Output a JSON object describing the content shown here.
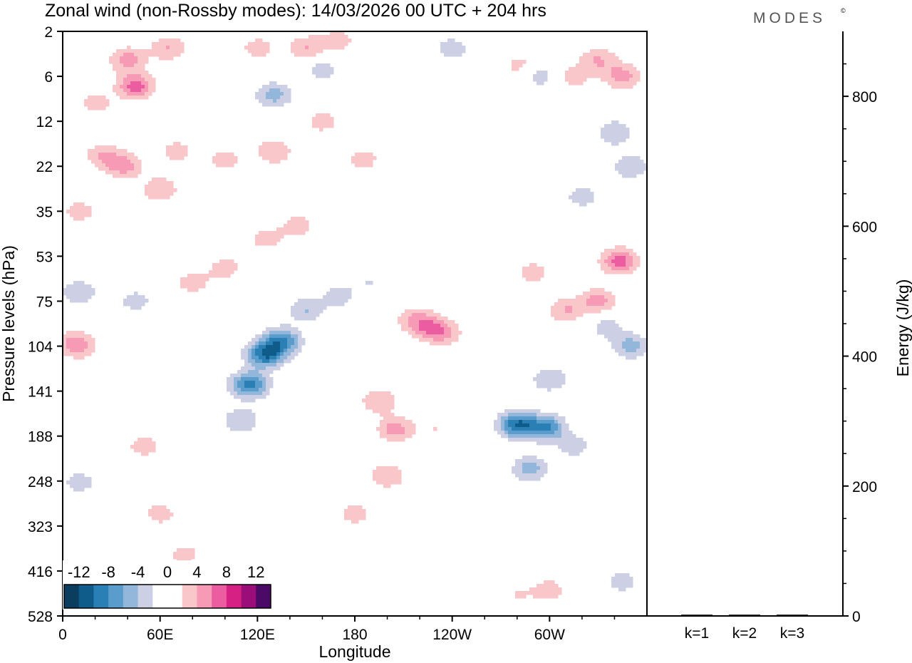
{
  "title": "Zonal wind (non-Rossby modes):  14/03/2026  00 UTC  + 204 hrs",
  "brand": "MODES",
  "brand_mark": "©",
  "chart_data": [
    {
      "type": "heatmap",
      "title": "Zonal wind (non-Rossby modes):  14/03/2026  00 UTC  + 204 hrs",
      "xlabel": "Longitude",
      "ylabel": "Pressure levels (hPa)",
      "x_ticks": [
        "0",
        "60E",
        "120E",
        "180",
        "120W",
        "60W"
      ],
      "x_tick_degrees": [
        0,
        60,
        120,
        180,
        240,
        300
      ],
      "xlim": [
        0,
        360
      ],
      "y_ticks": [
        "2",
        "6",
        "12",
        "22",
        "35",
        "53",
        "75",
        "104",
        "141",
        "188",
        "248",
        "323",
        "416",
        "528"
      ],
      "y_direction": "downward (pressure increases downward)",
      "colorbar": {
        "tick_labels": [
          "-12",
          "-8",
          "-4",
          "0",
          "4",
          "8",
          "12"
        ],
        "levels": [
          -14,
          -12,
          -10,
          -8,
          -6,
          -4,
          -2,
          0,
          2,
          4,
          6,
          8,
          10,
          12,
          14
        ],
        "colors": [
          "#0b3d5e",
          "#0f5b8a",
          "#2a7fb5",
          "#5a9ccc",
          "#93b7da",
          "#cdd0e5",
          "#ffffff",
          "#ffffff",
          "#f9c6c9",
          "#f69ab5",
          "#ec5ca0",
          "#d62083",
          "#9b0d79",
          "#4b0a66"
        ],
        "placement": "bottom-left"
      },
      "blobs": [
        {
          "lon": 45,
          "p": 7,
          "val": 7
        },
        {
          "lon": 40,
          "p": 4,
          "val": 5
        },
        {
          "lon": 20,
          "p": 9,
          "val": 3
        },
        {
          "lon": 65,
          "p": 3,
          "val": 4
        },
        {
          "lon": 120,
          "p": 3,
          "val": 3
        },
        {
          "lon": 150,
          "p": 3,
          "val": 4
        },
        {
          "lon": 170,
          "p": 2.5,
          "val": 3
        },
        {
          "lon": 25,
          "p": 19,
          "val": 4
        },
        {
          "lon": 38,
          "p": 22,
          "val": 5
        },
        {
          "lon": 60,
          "p": 28,
          "val": 4
        },
        {
          "lon": 10,
          "p": 35,
          "val": 3
        },
        {
          "lon": 70,
          "p": 18,
          "val": 3
        },
        {
          "lon": 100,
          "p": 20,
          "val": 3
        },
        {
          "lon": 130,
          "p": 18,
          "val": 4
        },
        {
          "lon": 160,
          "p": 12,
          "val": 3
        },
        {
          "lon": 185,
          "p": 20,
          "val": 3
        },
        {
          "lon": 130,
          "p": 8,
          "val": -5
        },
        {
          "lon": 160,
          "p": 5,
          "val": -3
        },
        {
          "lon": 195,
          "p": 4,
          "val": -2
        },
        {
          "lon": 240,
          "p": 3,
          "val": -3
        },
        {
          "lon": 265,
          "p": 4,
          "val": -2
        },
        {
          "lon": 280,
          "p": 4.5,
          "val": 3
        },
        {
          "lon": 295,
          "p": 6,
          "val": -3
        },
        {
          "lon": 315,
          "p": 6,
          "val": 3
        },
        {
          "lon": 330,
          "p": 4,
          "val": 4
        },
        {
          "lon": 345,
          "p": 6,
          "val": 5
        },
        {
          "lon": 340,
          "p": 14,
          "val": -4
        },
        {
          "lon": 350,
          "p": 22,
          "val": -4
        },
        {
          "lon": 320,
          "p": 30,
          "val": -3
        },
        {
          "lon": 10,
          "p": 70,
          "val": -4
        },
        {
          "lon": 5,
          "p": 100,
          "val": 2
        },
        {
          "lon": 10,
          "p": 104,
          "val": 4
        },
        {
          "lon": 45,
          "p": 75,
          "val": -3
        },
        {
          "lon": 55,
          "p": 90,
          "val": 2
        },
        {
          "lon": 80,
          "p": 65,
          "val": 3
        },
        {
          "lon": 100,
          "p": 58,
          "val": 3
        },
        {
          "lon": 125,
          "p": 45,
          "val": 3
        },
        {
          "lon": 145,
          "p": 40,
          "val": 3
        },
        {
          "lon": 160,
          "p": 55,
          "val": 2
        },
        {
          "lon": 115,
          "p": 135,
          "val": -9
        },
        {
          "lon": 125,
          "p": 110,
          "val": -10
        },
        {
          "lon": 135,
          "p": 100,
          "val": -8
        },
        {
          "lon": 110,
          "p": 170,
          "val": -4
        },
        {
          "lon": 150,
          "p": 80,
          "val": -4
        },
        {
          "lon": 170,
          "p": 72,
          "val": -3
        },
        {
          "lon": 190,
          "p": 65,
          "val": -2
        },
        {
          "lon": 215,
          "p": 85,
          "val": 3
        },
        {
          "lon": 225,
          "p": 90,
          "val": 5
        },
        {
          "lon": 235,
          "p": 95,
          "val": 4
        },
        {
          "lon": 195,
          "p": 150,
          "val": 4
        },
        {
          "lon": 205,
          "p": 180,
          "val": 5
        },
        {
          "lon": 200,
          "p": 240,
          "val": 4
        },
        {
          "lon": 180,
          "p": 300,
          "val": 3
        },
        {
          "lon": 230,
          "p": 180,
          "val": 2
        },
        {
          "lon": 165,
          "p": 140,
          "val": 2
        },
        {
          "lon": 280,
          "p": 175,
          "val": -10
        },
        {
          "lon": 298,
          "p": 178,
          "val": -8
        },
        {
          "lon": 288,
          "p": 230,
          "val": -5
        },
        {
          "lon": 300,
          "p": 130,
          "val": -4
        },
        {
          "lon": 315,
          "p": 200,
          "val": -3
        },
        {
          "lon": 290,
          "p": 60,
          "val": 3
        },
        {
          "lon": 310,
          "p": 80,
          "val": 4
        },
        {
          "lon": 330,
          "p": 75,
          "val": 5
        },
        {
          "lon": 343,
          "p": 55,
          "val": 7
        },
        {
          "lon": 350,
          "p": 104,
          "val": -5
        },
        {
          "lon": 335,
          "p": 90,
          "val": -3
        },
        {
          "lon": 50,
          "p": 200,
          "val": 3
        },
        {
          "lon": 60,
          "p": 300,
          "val": 3
        },
        {
          "lon": 75,
          "p": 380,
          "val": 3
        },
        {
          "lon": 30,
          "p": 320,
          "val": 2
        },
        {
          "lon": 10,
          "p": 250,
          "val": -3
        },
        {
          "lon": 20,
          "p": 400,
          "val": -2
        },
        {
          "lon": 280,
          "p": 470,
          "val": 2
        },
        {
          "lon": 300,
          "p": 460,
          "val": 3
        },
        {
          "lon": 345,
          "p": 440,
          "val": -3
        },
        {
          "lon": 350,
          "p": 320,
          "val": -2
        },
        {
          "lon": 140,
          "p": 260,
          "val": -2
        },
        {
          "lon": 255,
          "p": 280,
          "val": 2
        }
      ]
    },
    {
      "type": "bar",
      "ylabel": "Energy (J/kg)",
      "categories": [
        "k=1",
        "k=2",
        "k=3"
      ],
      "values": [
        2,
        2,
        2
      ],
      "ylim": [
        0,
        900
      ],
      "y_tick_labels": [
        "0",
        "200",
        "400",
        "600",
        "800"
      ],
      "y_tick_values": [
        0,
        200,
        400,
        600,
        800
      ]
    }
  ]
}
